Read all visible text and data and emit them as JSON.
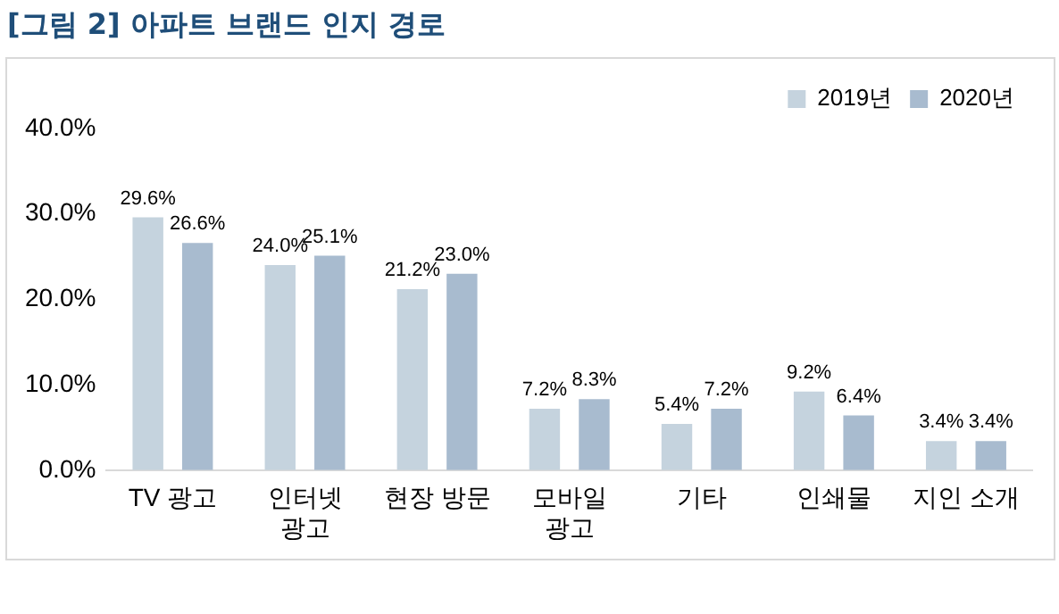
{
  "chart_data": {
    "type": "bar",
    "title": "[그림 2] 아파트 브랜드 인지 경로",
    "categories": [
      "TV 광고",
      "인터넷 광고",
      "현장 방문",
      "모바일 광고",
      "기타",
      "인쇄물",
      "지인 소개"
    ],
    "series": [
      {
        "name": "2019년",
        "color": "#c5d3de",
        "values": [
          29.6,
          24.0,
          21.2,
          7.2,
          5.4,
          9.2,
          3.4
        ],
        "value_labels": [
          "29.6%",
          "24.0%",
          "21.2%",
          "7.2%",
          "5.4%",
          "9.2%",
          "3.4%"
        ]
      },
      {
        "name": "2020년",
        "color": "#a8bbcf",
        "values": [
          26.6,
          25.1,
          23.0,
          8.3,
          7.2,
          6.4,
          3.4
        ],
        "value_labels": [
          "26.6%",
          "25.1%",
          "23.0%",
          "8.3%",
          "7.2%",
          "6.4%",
          "3.4%"
        ]
      }
    ],
    "ylim": [
      0,
      40
    ],
    "yticks": [
      {
        "value": 0,
        "label": "0.0%"
      },
      {
        "value": 10,
        "label": "10.0%"
      },
      {
        "value": 20,
        "label": "20.0%"
      },
      {
        "value": 30,
        "label": "30.0%"
      },
      {
        "value": 40,
        "label": "40.0%"
      }
    ],
    "grid": false,
    "legend": "top right"
  }
}
